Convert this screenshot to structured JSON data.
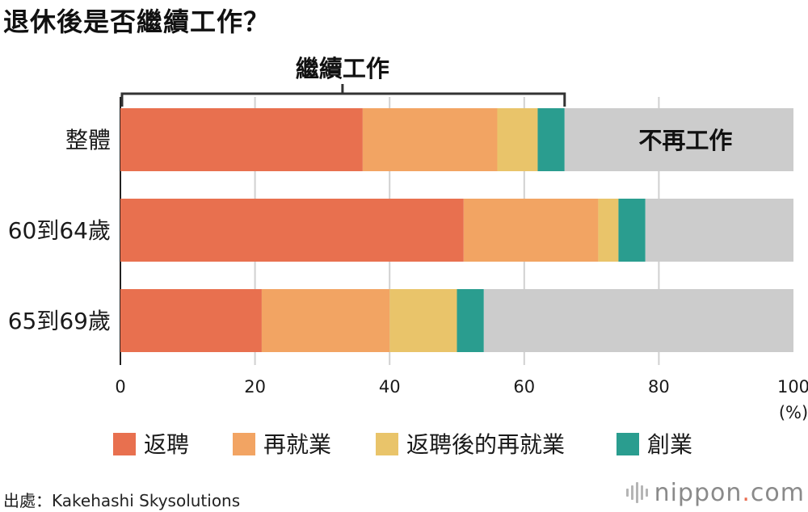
{
  "title": "退休後是否繼續工作？",
  "source": "出處：Kakehashi Skysolutions",
  "logo": {
    "name": "nippon",
    "dot": ".",
    "tld": "com"
  },
  "colors": {
    "返聘": "#e8704f",
    "再就業": "#f2a463",
    "返聘後的再就業": "#e9c46a",
    "創業": "#2a9d8f",
    "不再工作": "#cccccc",
    "grid": "#d0d0d0",
    "text": "#1a1a1a"
  },
  "chart_data": {
    "type": "bar",
    "orientation": "horizontal",
    "stacked": true,
    "categories": [
      "整體",
      "60到64歲",
      "65到69歲"
    ],
    "series": [
      {
        "name": "返聘",
        "values": [
          36,
          51,
          21
        ]
      },
      {
        "name": "再就業",
        "values": [
          20,
          20,
          19
        ]
      },
      {
        "name": "返聘後的再就業",
        "values": [
          6,
          3,
          10
        ]
      },
      {
        "name": "創業",
        "values": [
          4,
          4,
          4
        ]
      }
    ],
    "remainder_label": "不再工作",
    "bracket_label": "繼續工作",
    "xlim": [
      0,
      100
    ],
    "xticks": [
      0,
      20,
      40,
      60,
      80,
      100
    ],
    "x_unit_label": "(%)",
    "grid": true,
    "legend_position": "bottom"
  }
}
